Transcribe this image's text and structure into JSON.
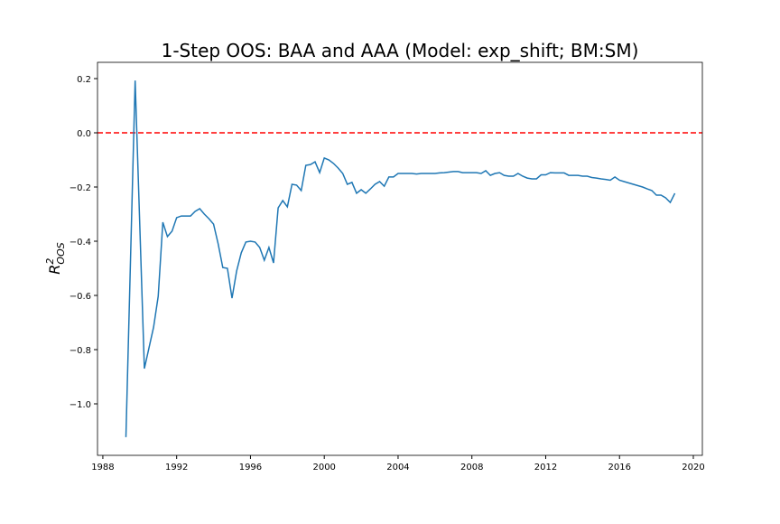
{
  "chart_data": {
    "type": "line",
    "title": "1-Step OOS: BAA and AAA (Model: exp_shift; BM:SM)",
    "y_label": {
      "base": "R",
      "sup": "2",
      "sub": "OOS"
    },
    "x": [
      1989.25,
      1989.75,
      1990.25,
      1990.75,
      1991.0,
      1991.25,
      1991.5,
      1991.75,
      1992.0,
      1992.25,
      1992.75,
      1993.0,
      1993.25,
      1993.5,
      1993.75,
      1994.0,
      1994.25,
      1994.5,
      1994.75,
      1995.0,
      1995.25,
      1995.5,
      1995.75,
      1996.0,
      1996.25,
      1996.5,
      1996.75,
      1997.0,
      1997.25,
      1997.5,
      1997.75,
      1998.0,
      1998.25,
      1998.5,
      1998.75,
      1999.0,
      1999.25,
      1999.5,
      1999.75,
      2000.0,
      2000.25,
      2000.5,
      2000.75,
      2001.0,
      2001.25,
      2001.5,
      2001.75,
      2002.0,
      2002.25,
      2002.5,
      2002.75,
      2003.0,
      2003.25,
      2003.5,
      2003.75,
      2004.0,
      2004.25,
      2004.5,
      2004.75,
      2005.0,
      2005.25,
      2005.5,
      2005.75,
      2006.0,
      2006.25,
      2006.5,
      2006.75,
      2007.0,
      2007.25,
      2007.5,
      2007.75,
      2008.0,
      2008.25,
      2008.5,
      2008.75,
      2009.0,
      2009.25,
      2009.5,
      2009.75,
      2010.0,
      2010.25,
      2010.5,
      2010.75,
      2011.0,
      2011.25,
      2011.5,
      2011.75,
      2012.0,
      2012.25,
      2012.5,
      2012.75,
      2013.0,
      2013.25,
      2013.5,
      2013.75,
      2014.0,
      2014.25,
      2014.5,
      2014.75,
      2015.0,
      2015.25,
      2015.5,
      2015.75,
      2016.0,
      2016.25,
      2016.5,
      2016.75,
      2017.0,
      2017.25,
      2017.5,
      2017.75,
      2018.0,
      2018.25,
      2018.5,
      2018.75,
      2019.0
    ],
    "series": [
      {
        "color": "#1f77b4",
        "values": [
          -1.123,
          0.193,
          -0.87,
          -0.717,
          -0.603,
          -0.33,
          -0.383,
          -0.363,
          -0.313,
          -0.307,
          -0.307,
          -0.29,
          -0.28,
          -0.3,
          -0.317,
          -0.337,
          -0.41,
          -0.497,
          -0.5,
          -0.61,
          -0.51,
          -0.443,
          -0.403,
          -0.4,
          -0.403,
          -0.423,
          -0.47,
          -0.423,
          -0.48,
          -0.277,
          -0.25,
          -0.273,
          -0.19,
          -0.193,
          -0.213,
          -0.12,
          -0.117,
          -0.107,
          -0.147,
          -0.093,
          -0.1,
          -0.113,
          -0.13,
          -0.15,
          -0.19,
          -0.183,
          -0.223,
          -0.21,
          -0.223,
          -0.207,
          -0.19,
          -0.18,
          -0.197,
          -0.163,
          -0.163,
          -0.15,
          -0.15,
          -0.15,
          -0.15,
          -0.152,
          -0.15,
          -0.15,
          -0.15,
          -0.15,
          -0.148,
          -0.147,
          -0.145,
          -0.143,
          -0.143,
          -0.147,
          -0.147,
          -0.147,
          -0.147,
          -0.15,
          -0.14,
          -0.157,
          -0.15,
          -0.147,
          -0.157,
          -0.16,
          -0.16,
          -0.15,
          -0.16,
          -0.167,
          -0.17,
          -0.17,
          -0.155,
          -0.155,
          -0.147,
          -0.148,
          -0.148,
          -0.148,
          -0.157,
          -0.157,
          -0.157,
          -0.16,
          -0.16,
          -0.165,
          -0.167,
          -0.17,
          -0.172,
          -0.175,
          -0.163,
          -0.175,
          -0.18,
          -0.185,
          -0.19,
          -0.195,
          -0.2,
          -0.207,
          -0.213,
          -0.23,
          -0.23,
          -0.24,
          -0.257,
          -0.223
        ]
      }
    ],
    "hline": {
      "value": 0,
      "color": "#ff0000",
      "dashed": true
    },
    "xlim": [
      1987.71,
      2020.49
    ],
    "ylim": [
      -1.19,
      0.26
    ],
    "xticks": [
      1988,
      1992,
      1996,
      2000,
      2004,
      2008,
      2012,
      2016,
      2020
    ],
    "yticks": [
      0.2,
      {
        "value": 0,
        "label": "0.0"
      },
      {
        "value": -0.2,
        "label": "−0.2"
      },
      {
        "value": -0.4,
        "label": "−0.4"
      },
      {
        "value": -0.6,
        "label": "−0.6"
      },
      {
        "value": -0.8,
        "label": "−0.8"
      },
      {
        "value": -1.0,
        "label": "−1.0"
      }
    ]
  }
}
